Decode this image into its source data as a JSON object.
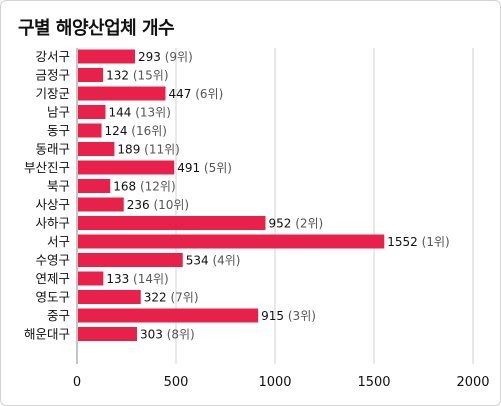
{
  "title": "구별 해양산업체 개수",
  "colors": {
    "bar": "#e8214a",
    "grid": "#d0d0d0",
    "axis": "#888888"
  },
  "chart_data": {
    "type": "bar",
    "orientation": "horizontal",
    "title": "구별 해양산업체 개수",
    "categories": [
      "강서구",
      "금정구",
      "기장군",
      "남구",
      "동구",
      "동래구",
      "부산진구",
      "북구",
      "사상구",
      "사하구",
      "서구",
      "수영구",
      "연제구",
      "영도구",
      "중구",
      "해운대구"
    ],
    "values": [
      293,
      132,
      447,
      144,
      124,
      189,
      491,
      168,
      236,
      952,
      1552,
      534,
      133,
      322,
      915,
      303
    ],
    "ranks": [
      "(9위)",
      "(15위)",
      "(6위)",
      "(13위)",
      "(16위)",
      "(11위)",
      "(5위)",
      "(12위)",
      "(10위)",
      "(2위)",
      "(1위)",
      "(4위)",
      "(14위)",
      "(7위)",
      "(3위)",
      "(8위)"
    ],
    "xlim": [
      0,
      2000
    ],
    "xticks": [
      0,
      500,
      1000,
      1500,
      2000
    ],
    "grid": true
  }
}
